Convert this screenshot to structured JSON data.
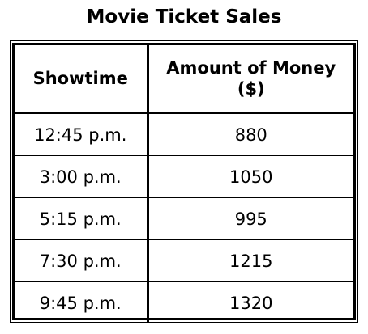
{
  "title": "Movie Ticket Sales",
  "columns": [
    "Showtime",
    "Amount of Money",
    "($)"
  ],
  "rows": [
    {
      "showtime": "12:45 p.m.",
      "amount": "880"
    },
    {
      "showtime": "3:00 p.m.",
      "amount": "1050"
    },
    {
      "showtime": "5:15 p.m.",
      "amount": "995"
    },
    {
      "showtime": "7:30 p.m.",
      "amount": "1215"
    },
    {
      "showtime": "9:45 p.m.",
      "amount": "1320"
    }
  ]
}
